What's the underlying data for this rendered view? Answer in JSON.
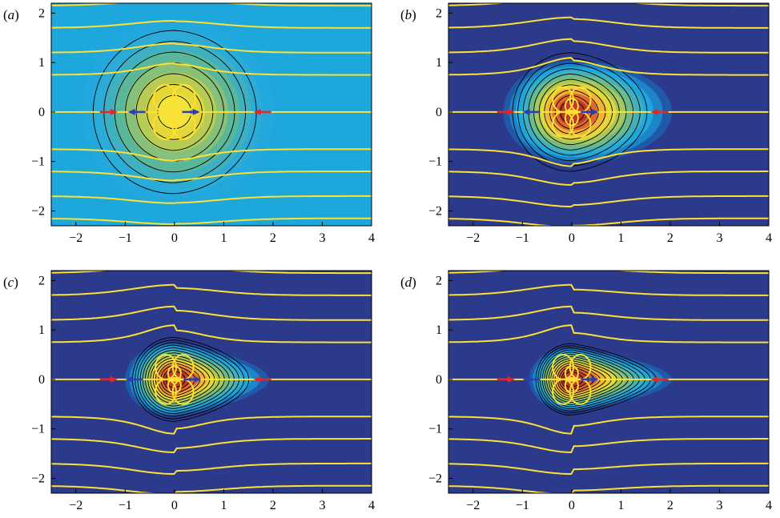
{
  "chart_data": [
    {
      "type": "heatmap",
      "panel_label": "(a)",
      "xlim": [
        -2.5,
        4
      ],
      "ylim": [
        -2.3,
        2.2
      ],
      "xticks": [
        -2,
        -1,
        0,
        1,
        2,
        3,
        4
      ],
      "yticks": [
        2,
        1,
        0,
        -1,
        -2
      ],
      "contour_scale": 1.0,
      "contour_reach": 3.3,
      "wake": 0.25,
      "stagnation_points": [
        -1.35,
        -0.75,
        0.32,
        1.8
      ]
    },
    {
      "type": "heatmap",
      "panel_label": "(b)",
      "xlim": [
        -2.5,
        4
      ],
      "ylim": [
        -2.3,
        2.2
      ],
      "xticks": [
        -2,
        -1,
        0,
        1,
        2,
        3,
        4
      ],
      "yticks": [
        2,
        1,
        0,
        -1,
        -2
      ],
      "contour_scale": 0.8,
      "contour_reach": 2.4,
      "wake": 0.6,
      "stagnation_points": [
        -1.35,
        -0.8,
        0.35,
        1.8
      ]
    },
    {
      "type": "heatmap",
      "panel_label": "(c)",
      "xlim": [
        -2.5,
        4
      ],
      "ylim": [
        -2.3,
        2.2
      ],
      "xticks": [
        -2,
        -1,
        0,
        1,
        2,
        3,
        4
      ],
      "yticks": [
        2,
        1,
        0,
        -1,
        -2
      ],
      "contour_scale": 0.6,
      "contour_reach": 1.7,
      "wake": 1.2,
      "stagnation_points": [
        -1.35,
        -0.8,
        0.35,
        1.8
      ]
    },
    {
      "type": "heatmap",
      "panel_label": "(d)",
      "xlim": [
        -2.5,
        4
      ],
      "ylim": [
        -2.3,
        2.2
      ],
      "xticks": [
        -2,
        -1,
        0,
        1,
        2,
        3,
        4
      ],
      "yticks": [
        2,
        1,
        0,
        -1,
        -2
      ],
      "contour_scale": 0.45,
      "contour_reach": 1.45,
      "wake": 1.8,
      "stagnation_points": [
        -1.35,
        -0.8,
        0.35,
        1.8
      ]
    }
  ],
  "colors": {
    "background_field": "#1ea7dc",
    "deep_field": "#2c3a8c",
    "core_hot": "#c0392b",
    "core_warm": "#f0e040",
    "core_green": "#62b88a",
    "streamline": "#ffe033",
    "contour": "#000000",
    "stagnation_red": "#e0262f",
    "stagnation_blue": "#2b3fb0"
  }
}
